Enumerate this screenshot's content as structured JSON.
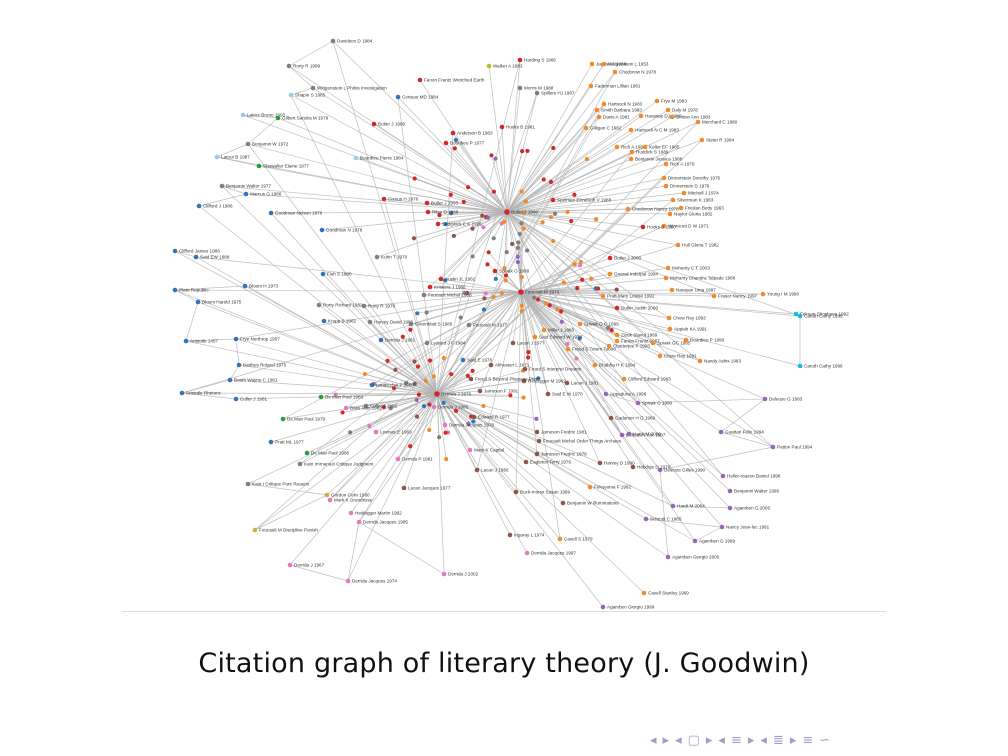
{
  "caption": "Citation graph of literary theory (J. Goodwin)",
  "colors": {
    "edge": "#b4b4b4",
    "red": "#d62728",
    "orange": "#f28a2a",
    "blue": "#2a78b9",
    "grey": "#7f7f7f",
    "pink": "#e377c2",
    "purple": "#9467bd",
    "brown": "#8c564b",
    "green": "#2ca02c",
    "lightblue": "#9ecae1",
    "cyan": "#17becf",
    "yellowgreen": "#bcbd22",
    "olive": "#c8b432"
  },
  "nav_icons": [
    "nav-left-icon",
    "nav-right-icon",
    "nav-left-icon",
    "nav-frame-icon",
    "nav-right-icon",
    "nav-left-icon",
    "nav-section-icon",
    "nav-right-icon",
    "nav-left-icon",
    "nav-subsection-icon",
    "nav-right-icon",
    "nav-align-icon",
    "nav-search-icon"
  ],
  "graph": {
    "hubs": [
      "Butler J 1990",
      "Derrida J 1976",
      "Foucault M 1970"
    ],
    "nodes": [
      {
        "label": "Davidson D 1984",
        "c": "grey"
      },
      {
        "label": "Rorty R 1989",
        "c": "grey"
      },
      {
        "label": "Wittgenstein L Philos Investigation",
        "c": "grey"
      },
      {
        "label": "Shapin S 1985",
        "c": "lightblue"
      },
      {
        "label": "Latour Bruno 1993",
        "c": "lightblue"
      },
      {
        "label": "Gilbert Sandra M 1979",
        "c": "green"
      },
      {
        "label": "Benjamin W 1972",
        "c": "grey"
      },
      {
        "label": "Latour B 1987",
        "c": "lightblue"
      },
      {
        "label": "Showalter Elaine 1977",
        "c": "green"
      },
      {
        "label": "Benjamin Walter 1977",
        "c": "grey"
      },
      {
        "label": "Marcus G 1986",
        "c": "blue"
      },
      {
        "label": "Clifford J 1986",
        "c": "blue"
      },
      {
        "label": "Goodman Nelson 1976",
        "c": "blue"
      },
      {
        "label": "Goodman N 1978",
        "c": "blue"
      },
      {
        "label": "Clifford James 1988",
        "c": "blue"
      },
      {
        "label": "Said EW 1989",
        "c": "blue"
      },
      {
        "label": "Fish S 1980",
        "c": "blue"
      },
      {
        "label": "Bloom H 1973",
        "c": "blue"
      },
      {
        "label": "Plato Republic",
        "c": "blue"
      },
      {
        "label": "Bloom Harold 1975",
        "c": "blue"
      },
      {
        "label": "Aristotle 1457",
        "c": "blue"
      },
      {
        "label": "Frye Northrop 1957",
        "c": "blue"
      },
      {
        "label": "Barthes Roland 1975",
        "c": "blue"
      },
      {
        "label": "Booth Wayne C 1961",
        "c": "blue"
      },
      {
        "label": "Aristotle Rhetoric",
        "c": "blue"
      },
      {
        "label": "Culler J 1981",
        "c": "blue"
      },
      {
        "label": "Fanon Frantz Wretched Earth",
        "c": "red"
      },
      {
        "label": "Certeau MD 1984",
        "c": "blue"
      },
      {
        "label": "Butler J 1999",
        "c": "red"
      },
      {
        "label": "Bourdieu Pierre 1984",
        "c": "lightblue"
      },
      {
        "label": "Anderson B 1983",
        "c": "red"
      },
      {
        "label": "Bourdieu P 1977",
        "c": "red"
      },
      {
        "label": "Hooks B 1981",
        "c": "red"
      },
      {
        "label": "Harding S 1986",
        "c": "red"
      },
      {
        "label": "Walker A 1983",
        "c": "yellowgreen"
      },
      {
        "label": "Morris M 1988",
        "c": "grey"
      },
      {
        "label": "Spillers HJ 1987",
        "c": "grey"
      },
      {
        "label": "Jagose A 1996",
        "c": "orange"
      },
      {
        "label": "Wittgenstein L 1953",
        "c": "orange"
      },
      {
        "label": "Chodorow N 1978",
        "c": "orange"
      },
      {
        "label": "Faderman Lillian 1981",
        "c": "orange"
      },
      {
        "label": "Frye M 1983",
        "c": "orange"
      },
      {
        "label": "Hartsock N 1983",
        "c": "orange"
      },
      {
        "label": "Smith Barbara 1983",
        "c": "orange"
      },
      {
        "label": "Daly M 1978",
        "c": "orange"
      },
      {
        "label": "Davis A 1981",
        "c": "orange"
      },
      {
        "label": "Haraway DJ 1989",
        "c": "orange"
      },
      {
        "label": "Snitow Ann 1983",
        "c": "orange"
      },
      {
        "label": "Merchant C 1980",
        "c": "orange"
      },
      {
        "label": "Gilligan C 1982",
        "c": "orange"
      },
      {
        "label": "Hartsock N C M 1983",
        "c": "orange"
      },
      {
        "label": "Steier R 1984",
        "c": "orange"
      },
      {
        "label": "Rich A 1980",
        "c": "orange"
      },
      {
        "label": "Keller EF 1985",
        "c": "orange"
      },
      {
        "label": "Ruddick S 1989",
        "c": "orange"
      },
      {
        "label": "Benjamin Jessica 1988",
        "c": "orange"
      },
      {
        "label": "Rich A 1979",
        "c": "orange"
      },
      {
        "label": "Dinnerstein Dorothy 1976",
        "c": "orange"
      },
      {
        "label": "Dinnerstein D 1976",
        "c": "orange"
      },
      {
        "label": "Mitchell J 1974",
        "c": "orange"
      },
      {
        "label": "Silverman K 1983",
        "c": "orange"
      },
      {
        "label": "Friedan Betty 1963",
        "c": "orange"
      },
      {
        "label": "Naylor Gloria 1982",
        "c": "orange"
      },
      {
        "label": "Chodorow Nancy 1978",
        "c": "orange"
      },
      {
        "label": "Winnicott D W 1971",
        "c": "orange"
      },
      {
        "label": "Hooks B 1990",
        "c": "red"
      },
      {
        "label": "Hull Gloria T 1982",
        "c": "orange"
      },
      {
        "label": "Butler J 2000",
        "c": "red"
      },
      {
        "label": "Mohanty C T 2003",
        "c": "orange"
      },
      {
        "label": "Grewal Inderpal 1994",
        "c": "orange"
      },
      {
        "label": "Mohanty Chandra Talpade 1986",
        "c": "orange"
      },
      {
        "label": "Narayan Uma 1997",
        "c": "orange"
      },
      {
        "label": "Fraser Nancy 1997",
        "c": "orange"
      },
      {
        "label": "Young I M 1990",
        "c": "orange"
      },
      {
        "label": "Felman Shoshana 1992",
        "c": "cyan"
      },
      {
        "label": "Caruth Cathy 1995",
        "c": "cyan"
      },
      {
        "label": "Caruth Cathy 1996",
        "c": "cyan"
      },
      {
        "label": "Butler Judith 2000",
        "c": "red"
      },
      {
        "label": "Chow Rey 1993",
        "c": "orange"
      },
      {
        "label": "Appiah KA 1991",
        "c": "orange"
      },
      {
        "label": "Chow Rey 1991",
        "c": "orange"
      },
      {
        "label": "Nandy Ashis 1983",
        "c": "orange"
      },
      {
        "label": "Sedgwick E K 1985",
        "c": "red"
      },
      {
        "label": "Riley D 1988",
        "c": "red"
      },
      {
        "label": "Cixous H 1976",
        "c": "red"
      },
      {
        "label": "Butler J 1993",
        "c": "red"
      },
      {
        "label": "Spelman Elizabeth V 1988",
        "c": "red"
      },
      {
        "label": "Kristeva J 1982",
        "c": "red"
      },
      {
        "label": "Foucault Michel 1988",
        "c": "grey"
      },
      {
        "label": "Kuhn T 1970",
        "c": "grey"
      },
      {
        "label": "Austin JL 1962",
        "c": "red"
      },
      {
        "label": "Spivak G 1988",
        "c": "red"
      },
      {
        "label": "Rorty Richard 1982",
        "c": "grey"
      },
      {
        "label": "Rorty R 1979",
        "c": "grey"
      },
      {
        "label": "Krupp S 1982",
        "c": "blue"
      },
      {
        "label": "Harvey David 1989",
        "c": "grey"
      },
      {
        "label": "Greenblatt S 1980",
        "c": "grey"
      },
      {
        "label": "Foucault M 1977",
        "c": "grey"
      },
      {
        "label": "Derrida J 1981",
        "c": "blue"
      },
      {
        "label": "Lyotard J F 1984",
        "c": "grey"
      },
      {
        "label": "Lacan J 1977",
        "c": "brown"
      },
      {
        "label": "Said E 1978",
        "c": "blue"
      },
      {
        "label": "Lentricchia F 1980",
        "c": "blue"
      },
      {
        "label": "De Man Paul 1983",
        "c": "green"
      },
      {
        "label": "Culler J 1982",
        "c": "grey"
      },
      {
        "label": "De Man Paul 1979",
        "c": "green"
      },
      {
        "label": "Pratt ML 1977",
        "c": "blue"
      },
      {
        "label": "De Man Paul 1986",
        "c": "green"
      },
      {
        "label": "Kant Immanuel Critique Judgment",
        "c": "grey"
      },
      {
        "label": "Kant I Critique Pure Reason",
        "c": "grey"
      },
      {
        "label": "Gordon Colin 1980",
        "c": "olive"
      },
      {
        "label": "Foucault M Discipline Punish",
        "c": "olive"
      },
      {
        "label": "Derrida J 1967",
        "c": "pink"
      },
      {
        "label": "Derrida Jacques 1974",
        "c": "pink"
      },
      {
        "label": "Derrida Jacques 1985",
        "c": "pink"
      },
      {
        "label": "Derrida J 2002",
        "c": "pink"
      },
      {
        "label": "Heidegger Martin 1962",
        "c": "pink"
      },
      {
        "label": "Mark K Grundrisse",
        "c": "pink"
      },
      {
        "label": "Lacan Jacques 1977",
        "c": "brown"
      },
      {
        "label": "Benjamin W Illuminations",
        "c": "brown"
      },
      {
        "label": "Buck-morss Susan 1989",
        "c": "brown"
      },
      {
        "label": "Derrida Jacques 1997",
        "c": "pink"
      },
      {
        "label": "Irigaray L 1974",
        "c": "brown"
      },
      {
        "label": "Cavell S 1979",
        "c": "orange"
      },
      {
        "label": "Cavell Stanley 1969",
        "c": "orange"
      },
      {
        "label": "Agamben Giorgio 1999",
        "c": "purple"
      },
      {
        "label": "Heller-roazen Daniel 1998",
        "c": "purple"
      },
      {
        "label": "Benjamin Walter 1996",
        "c": "purple"
      },
      {
        "label": "Agamben G 2005",
        "c": "purple"
      },
      {
        "label": "Hardt M 2004",
        "c": "purple"
      },
      {
        "label": "Schmitt C 1985",
        "c": "purple"
      },
      {
        "label": "Nancy Jean-luc 1991",
        "c": "purple"
      },
      {
        "label": "Agamben G 1999",
        "c": "purple"
      },
      {
        "label": "Agamben Giorgio 2000",
        "c": "purple"
      },
      {
        "label": "Deleuze Gilles 1990",
        "c": "purple"
      },
      {
        "label": "Patton Paul 1994",
        "c": "purple"
      },
      {
        "label": "Guattari Felix 1994",
        "c": "purple"
      },
      {
        "label": "Deleuze G 1983",
        "c": "purple"
      },
      {
        "label": "Spivak G 1990",
        "c": "purple"
      },
      {
        "label": "Appadurai A 1996",
        "c": "purple"
      },
      {
        "label": "Gadamer H G 1989",
        "c": "brown"
      },
      {
        "label": "Deleuze Felix 1987",
        "c": "purple"
      },
      {
        "label": "Hardt M 2000",
        "c": "purple"
      },
      {
        "label": "Hebdige D 1979",
        "c": "brown"
      },
      {
        "label": "Harvey D 1990",
        "c": "brown"
      },
      {
        "label": "Fukuyama F 1992",
        "c": "orange"
      },
      {
        "label": "Jameson Fredric 1981",
        "c": "brown"
      },
      {
        "label": "Jameson Fredric 1979",
        "c": "brown"
      },
      {
        "label": "Eagleton Terry 1976",
        "c": "brown"
      },
      {
        "label": "Foucault Michel Order Things Archaeo",
        "c": "brown"
      },
      {
        "label": "Said E W 1978",
        "c": "brown"
      },
      {
        "label": "Heidegger M 1962",
        "c": "brown"
      },
      {
        "label": "Freud S Beyond Pleasure Princ",
        "c": "brown"
      },
      {
        "label": "Lacan J 1966",
        "c": "brown"
      },
      {
        "label": "Althusser L 1971",
        "c": "brown"
      },
      {
        "label": "Marx K Capital",
        "c": "pink"
      },
      {
        "label": "Derrida P 1981",
        "c": "pink"
      },
      {
        "label": "Levinas E 1969",
        "c": "pink"
      },
      {
        "label": "Derrida Jacques 1978",
        "c": "pink"
      },
      {
        "label": "Bass Alan 1982",
        "c": "pink"
      },
      {
        "label": "Derrida J 1985",
        "c": "pink"
      },
      {
        "label": "Edward R 1977",
        "c": "brown"
      },
      {
        "label": "Jameson F 1991",
        "c": "brown"
      },
      {
        "label": "Frued S Interpret Dreams",
        "c": "brown"
      },
      {
        "label": "Lacan J 1981",
        "c": "brown"
      },
      {
        "label": "Bhabha H K 1994",
        "c": "orange"
      },
      {
        "label": "Clifford Edward 1993",
        "c": "orange"
      },
      {
        "label": "Spivak G C 1999",
        "c": "orange"
      },
      {
        "label": "Miller J 1986",
        "c": "orange"
      },
      {
        "label": "Said Edward W 1978",
        "c": "orange"
      },
      {
        "label": "Freud S Totem Taboo",
        "c": "orange"
      },
      {
        "label": "Zizek Slavoj 1989",
        "c": "orange"
      },
      {
        "label": "Fanon Frantz 1967",
        "c": "orange"
      },
      {
        "label": "Chatterjee P 1993",
        "c": "orange"
      },
      {
        "label": "Spivak GC 1985",
        "c": "orange"
      },
      {
        "label": "Bourdieu P 1990",
        "c": "orange"
      },
      {
        "label": "Pratt Mary Louise 1992",
        "c": "orange"
      },
      {
        "label": "Fanon F 1963",
        "c": "orange"
      }
    ]
  }
}
